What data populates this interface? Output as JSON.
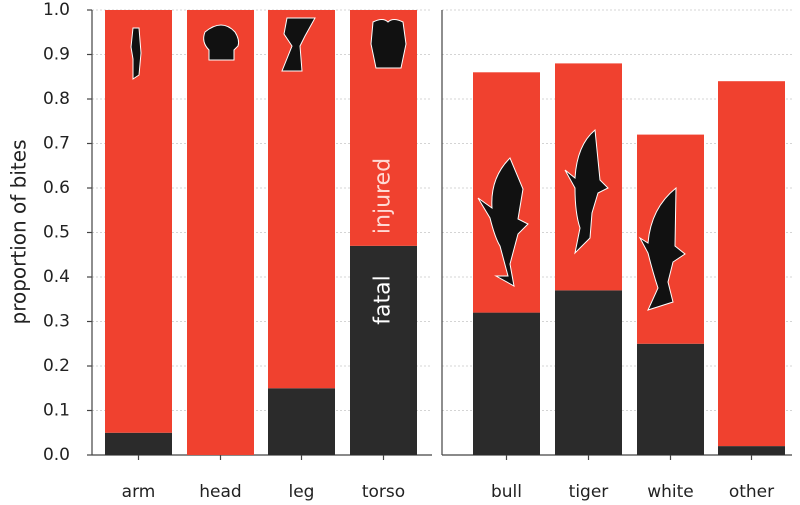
{
  "chart_data": [
    {
      "type": "stacked-bar",
      "y_label": "proportion of bites",
      "categories": [
        "arm",
        "head",
        "leg",
        "torso"
      ],
      "series": [
        {
          "name": "fatal",
          "color": "#2b2b2b",
          "values": [
            0.05,
            0,
            0.15,
            0.47
          ]
        },
        {
          "name": "injured",
          "color": "#f0412f",
          "values": [
            0.95,
            1.0,
            0.85,
            0.53
          ]
        }
      ],
      "ylim": [
        0,
        1.0
      ],
      "yticks": [
        {
          "value": 0,
          "label": "0.0"
        },
        0.1,
        0.2,
        0.3,
        0.4,
        0.5,
        0.6,
        0.7,
        0.8,
        0.9,
        {
          "value": 1,
          "label": "1.0"
        }
      ],
      "grid": true
    },
    {
      "type": "stacked-bar",
      "categories": [
        "bull",
        "tiger",
        "white",
        "other"
      ],
      "series": [
        {
          "name": "fatal",
          "color": "#2b2b2b",
          "values": [
            0.32,
            0.37,
            0.25,
            0.02
          ]
        },
        {
          "name": "injured",
          "color": "#f0412f",
          "values": [
            0.54,
            0.51,
            0.47,
            0.82
          ]
        }
      ],
      "ylim": [
        0,
        1.0
      ],
      "grid": true
    }
  ]
}
